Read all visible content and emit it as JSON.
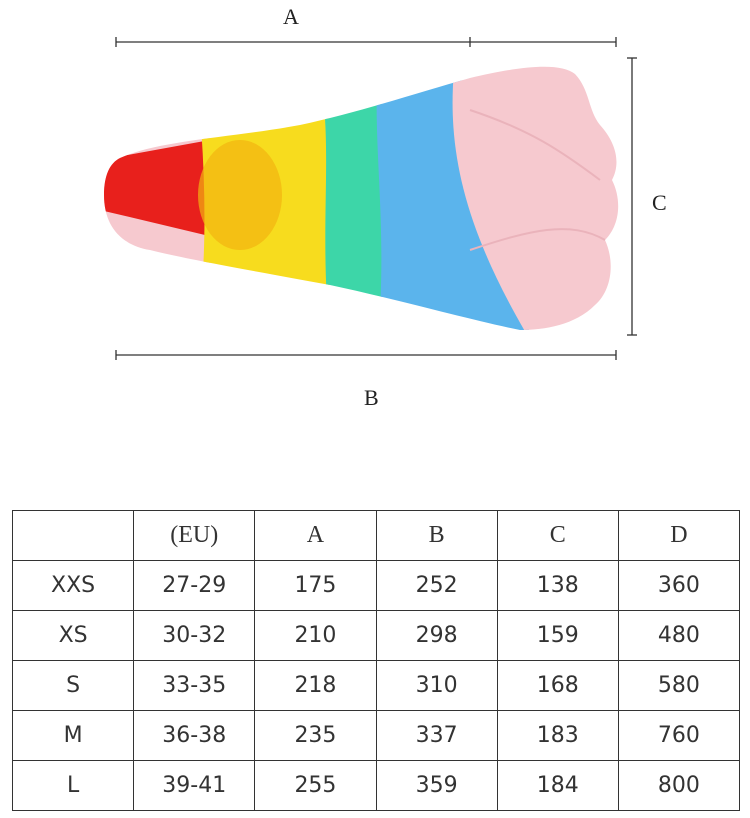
{
  "diagram": {
    "labels": {
      "a": "A",
      "b": "B",
      "c": "C"
    },
    "colors": {
      "red": "#e8201c",
      "yellow": "#f7dc1e",
      "green": "#3dd6a8",
      "blue": "#5bb4ec",
      "pink": "#f6c9cf"
    }
  },
  "table": {
    "headers": [
      "",
      "(EU)",
      "A",
      "B",
      "C",
      "D"
    ],
    "rows": [
      [
        "XXS",
        "27-29",
        "175",
        "252",
        "138",
        "360"
      ],
      [
        "XS",
        "30-32",
        "210",
        "298",
        "159",
        "480"
      ],
      [
        "S",
        "33-35",
        "218",
        "310",
        "168",
        "580"
      ],
      [
        "M",
        "36-38",
        "235",
        "337",
        "183",
        "760"
      ],
      [
        "L",
        "39-41",
        "255",
        "359",
        "184",
        "800"
      ]
    ]
  }
}
